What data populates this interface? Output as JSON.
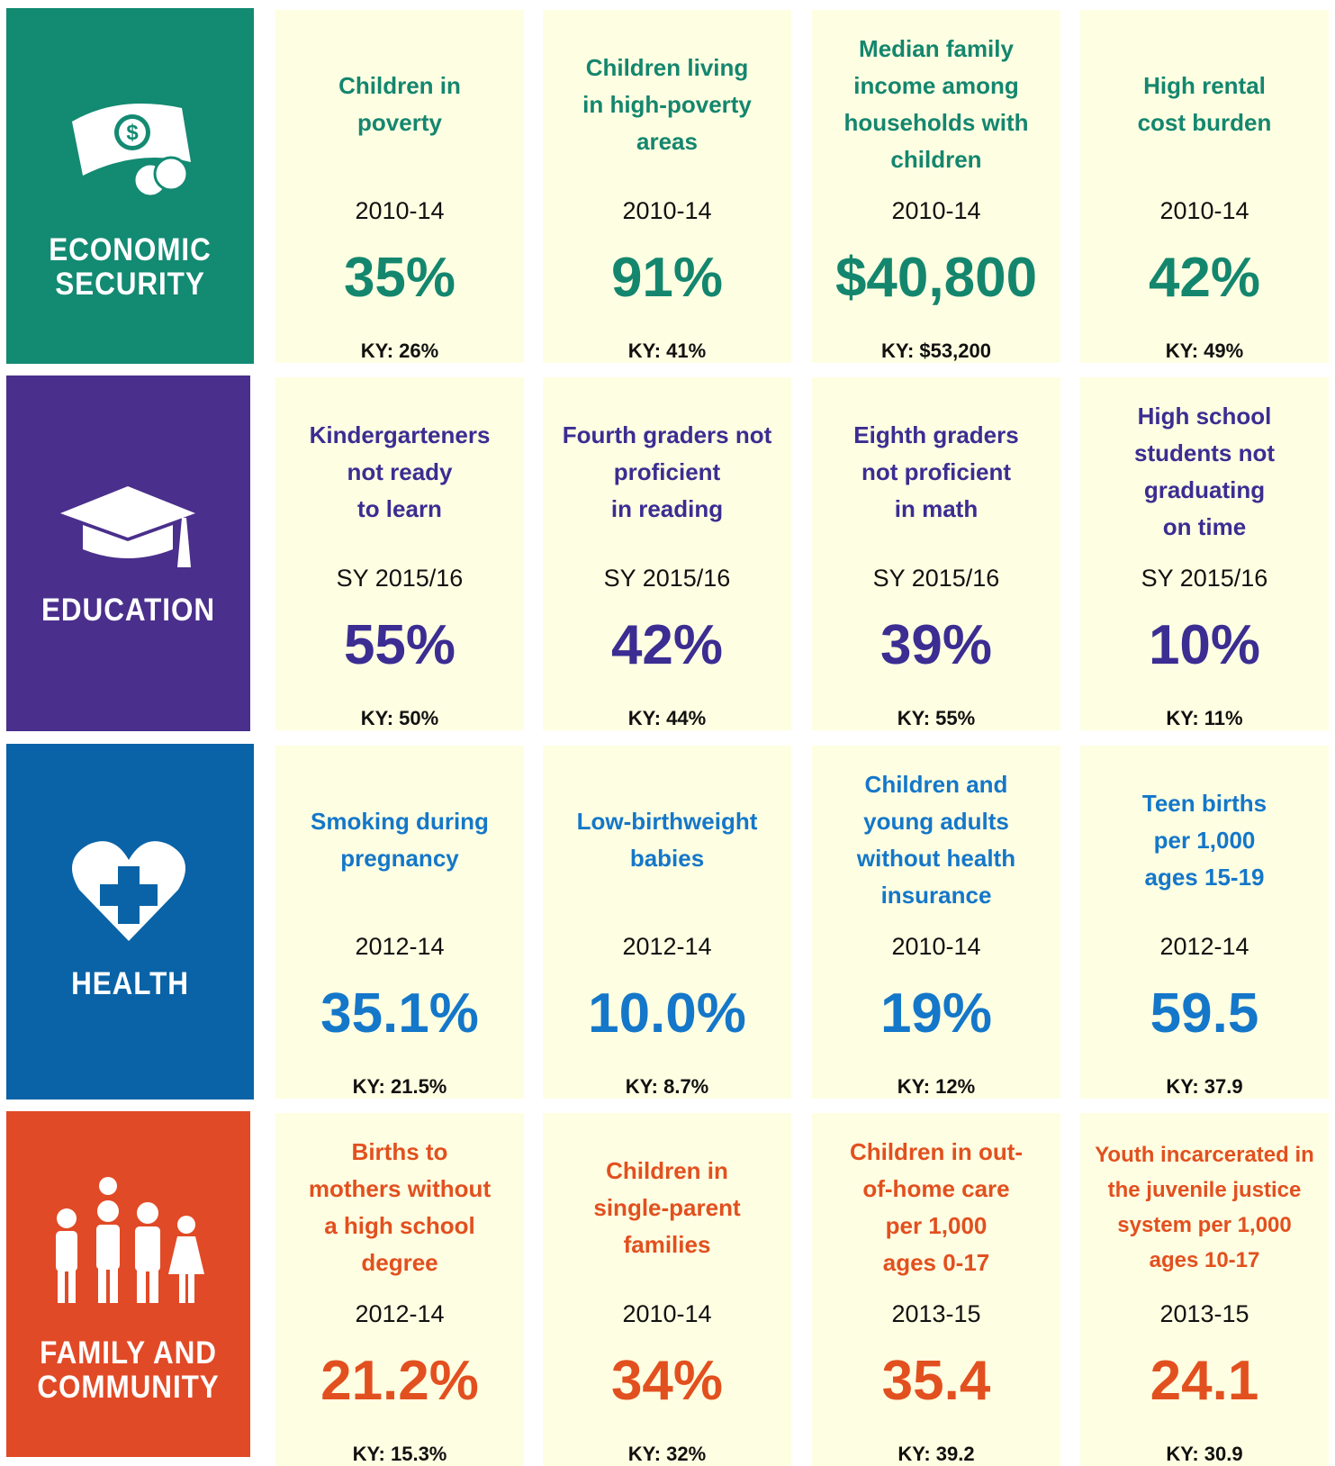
{
  "sections": [
    {
      "label": [
        "ECONOMIC",
        "SECURITY"
      ],
      "color": "#138a72",
      "text_color": "#14866e",
      "cards": [
        {
          "title": [
            "Children in",
            "poverty"
          ],
          "period": "2010-14",
          "value": "35%",
          "ky": "KY: 26%"
        },
        {
          "title": [
            "Children living",
            "in high-poverty",
            "areas"
          ],
          "period": "2010-14",
          "value": "91%",
          "ky": "KY: 41%"
        },
        {
          "title": [
            "Median family",
            "income among",
            "households with",
            "children"
          ],
          "period": "2010-14",
          "value": "$40,800",
          "ky": "KY: $53,200"
        },
        {
          "title": [
            "High rental",
            "cost burden"
          ],
          "period": "2010-14",
          "value": "42%",
          "ky": "KY: 49%"
        }
      ]
    },
    {
      "label": [
        "EDUCATION"
      ],
      "color": "#4a2f8c",
      "text_color": "#3b2d92",
      "cards": [
        {
          "title": [
            "Kindergarteners",
            "not ready",
            "to learn"
          ],
          "period": "SY 2015/16",
          "value": "55%",
          "ky": "KY: 50%"
        },
        {
          "title": [
            "Fourth graders not",
            "proficient",
            "in reading"
          ],
          "period": "SY 2015/16",
          "value": "42%",
          "ky": "KY: 44%"
        },
        {
          "title": [
            "Eighth graders",
            "not proficient",
            "in math"
          ],
          "period": "SY 2015/16",
          "value": "39%",
          "ky": "KY: 55%"
        },
        {
          "title": [
            "High school",
            "students not",
            "graduating",
            "on time"
          ],
          "period": "SY 2015/16",
          "value": "10%",
          "ky": "KY: 11%"
        }
      ]
    },
    {
      "label": [
        "HEALTH"
      ],
      "color": "#0a63a6",
      "text_color": "#1477c9",
      "cards": [
        {
          "title": [
            "Smoking during",
            "pregnancy"
          ],
          "period": "2012-14",
          "value": "35.1%",
          "ky": "KY: 21.5%"
        },
        {
          "title": [
            "Low-birthweight",
            "babies"
          ],
          "period": "2012-14",
          "value": "10.0%",
          "ky": "KY: 8.7%"
        },
        {
          "title": [
            "Children and",
            "young adults",
            "without health",
            "insurance"
          ],
          "period": "2010-14",
          "value": "19%",
          "ky": "KY: 12%"
        },
        {
          "title": [
            "Teen births",
            "per 1,000",
            "ages 15-19"
          ],
          "period": "2012-14",
          "value": "59.5",
          "ky": "KY: 37.9"
        }
      ]
    },
    {
      "label": [
        "FAMILY AND",
        "COMMUNITY"
      ],
      "color": "#e14a26",
      "text_color": "#e2501f",
      "cards": [
        {
          "title": [
            "Births to",
            "mothers without",
            "a high school",
            "degree"
          ],
          "period": "2012-14",
          "value": "21.2%",
          "ky": "KY: 15.3%"
        },
        {
          "title": [
            "Children in",
            "single-parent",
            "families"
          ],
          "period": "2010-14",
          "value": "34%",
          "ky": "KY: 32%"
        },
        {
          "title": [
            "Children in out-",
            "of-home care",
            "per 1,000",
            "ages 0-17"
          ],
          "period": "2013-15",
          "value": "35.4",
          "ky": "KY: 39.2"
        },
        {
          "title": [
            "Youth incarcerated in",
            "the juvenile justice",
            "system per 1,000",
            "ages 10-17"
          ],
          "period": "2013-15",
          "value": "24.1",
          "ky": "KY: 30.9"
        }
      ]
    }
  ]
}
